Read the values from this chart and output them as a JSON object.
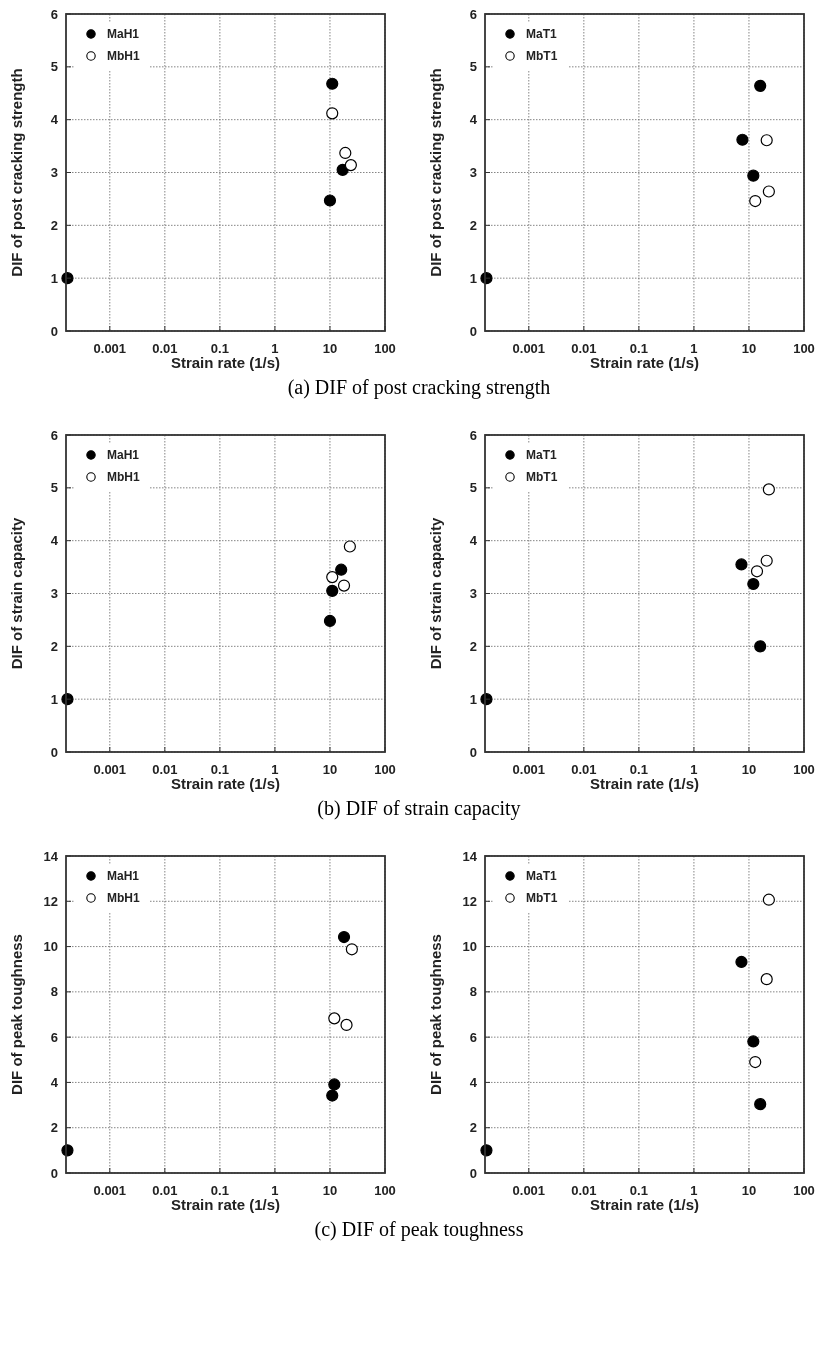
{
  "chart_data": [
    {
      "type": "scatter",
      "xlabel": "Strain rate (1/s)",
      "ylabel": "DIF of post cracking strength",
      "annotations": [
        "(a) DIF of post cracking strength"
      ],
      "log": "x",
      "xlim": [
        0.00016,
        100
      ],
      "xticks": [
        0.001,
        0.01,
        0.1,
        1,
        10,
        100
      ],
      "ylim": [
        0,
        6
      ],
      "yticks": [
        0,
        1,
        2,
        3,
        4,
        5,
        6
      ],
      "grid": true,
      "legend": "top left",
      "marker": "circle",
      "series": [
        {
          "name": "MaH1",
          "color": "#000000",
          "x": [
            0.00017,
            10,
            11,
            17
          ],
          "values": [
            1,
            2.47,
            4.68,
            3.05
          ]
        },
        {
          "name": "MbH1",
          "color": "#ffffff",
          "x": [
            11,
            19,
            24
          ],
          "values": [
            4.12,
            3.37,
            3.14
          ]
        }
      ]
    },
    {
      "type": "scatter",
      "xlabel": "Strain rate (1/s)",
      "ylabel": "DIF of post cracking strength",
      "log": "x",
      "xlim": [
        0.00016,
        100
      ],
      "xticks": [
        0.001,
        0.01,
        0.1,
        1,
        10,
        100
      ],
      "ylim": [
        0,
        6
      ],
      "yticks": [
        0,
        1,
        2,
        3,
        4,
        5,
        6
      ],
      "grid": true,
      "legend": "top left",
      "marker": "circle",
      "series": [
        {
          "name": "MaT1",
          "color": "#000000",
          "x": [
            0.00017,
            7.6,
            16,
            12
          ],
          "values": [
            1,
            3.62,
            4.64,
            2.94
          ]
        },
        {
          "name": "MbT1",
          "color": "#ffffff",
          "x": [
            21,
            23,
            13
          ],
          "values": [
            3.61,
            2.64,
            2.46
          ]
        }
      ]
    },
    {
      "type": "scatter",
      "xlabel": "Strain rate (1/s)",
      "ylabel": "DIF of strain capacity",
      "annotations": [
        "(b) DIF of strain capacity"
      ],
      "log": "x",
      "xlim": [
        0.00016,
        100
      ],
      "xticks": [
        0.001,
        0.01,
        0.1,
        1,
        10,
        100
      ],
      "ylim": [
        0,
        6
      ],
      "yticks": [
        0,
        1,
        2,
        3,
        4,
        5,
        6
      ],
      "grid": true,
      "legend": "top left",
      "marker": "circle",
      "series": [
        {
          "name": "MaH1",
          "color": "#000000",
          "x": [
            0.00017,
            10,
            11,
            16
          ],
          "values": [
            1,
            2.48,
            3.05,
            3.45
          ]
        },
        {
          "name": "MbH1",
          "color": "#ffffff",
          "x": [
            11,
            18,
            23
          ],
          "values": [
            3.31,
            3.15,
            3.89
          ]
        }
      ]
    },
    {
      "type": "scatter",
      "xlabel": "Strain rate (1/s)",
      "ylabel": "DIF of strain capacity",
      "log": "x",
      "xlim": [
        0.00016,
        100
      ],
      "xticks": [
        0.001,
        0.01,
        0.1,
        1,
        10,
        100
      ],
      "ylim": [
        0,
        6
      ],
      "yticks": [
        0,
        1,
        2,
        3,
        4,
        5,
        6
      ],
      "grid": true,
      "legend": "top left",
      "marker": "circle",
      "series": [
        {
          "name": "MaT1",
          "color": "#000000",
          "x": [
            0.00017,
            7.3,
            12,
            16
          ],
          "values": [
            1,
            3.55,
            3.18,
            2.0
          ]
        },
        {
          "name": "MbT1",
          "color": "#ffffff",
          "x": [
            23,
            14,
            21
          ],
          "values": [
            4.97,
            3.42,
            3.62
          ]
        }
      ]
    },
    {
      "type": "scatter",
      "xlabel": "Strain rate (1/s)",
      "ylabel": "DIF of peak toughness",
      "annotations": [
        "(c) DIF of peak toughness"
      ],
      "log": "x",
      "xlim": [
        0.00016,
        100
      ],
      "xticks": [
        0.001,
        0.01,
        0.1,
        1,
        10,
        100
      ],
      "ylim": [
        0,
        14
      ],
      "yticks": [
        0,
        2,
        4,
        6,
        8,
        10,
        12,
        14
      ],
      "grid": true,
      "legend": "top left",
      "marker": "circle",
      "series": [
        {
          "name": "MaH1",
          "color": "#000000",
          "x": [
            0.00017,
            18,
            11,
            12
          ],
          "values": [
            1,
            10.42,
            3.42,
            3.91
          ]
        },
        {
          "name": "MbH1",
          "color": "#ffffff",
          "x": [
            12,
            20,
            25
          ],
          "values": [
            6.83,
            6.54,
            9.88
          ]
        }
      ]
    },
    {
      "type": "scatter",
      "xlabel": "Strain rate (1/s)",
      "ylabel": "DIF of peak toughness",
      "log": "x",
      "xlim": [
        0.00016,
        100
      ],
      "xticks": [
        0.001,
        0.01,
        0.1,
        1,
        10,
        100
      ],
      "ylim": [
        0,
        14
      ],
      "yticks": [
        0,
        2,
        4,
        6,
        8,
        10,
        12,
        14
      ],
      "grid": true,
      "legend": "top left",
      "marker": "circle",
      "series": [
        {
          "name": "MaT1",
          "color": "#000000",
          "x": [
            0.00017,
            7.3,
            12,
            16
          ],
          "values": [
            1,
            9.32,
            5.81,
            3.04
          ]
        },
        {
          "name": "MbT1",
          "color": "#ffffff",
          "x": [
            23,
            21,
            13
          ],
          "values": [
            12.07,
            8.56,
            4.9
          ]
        }
      ]
    }
  ]
}
